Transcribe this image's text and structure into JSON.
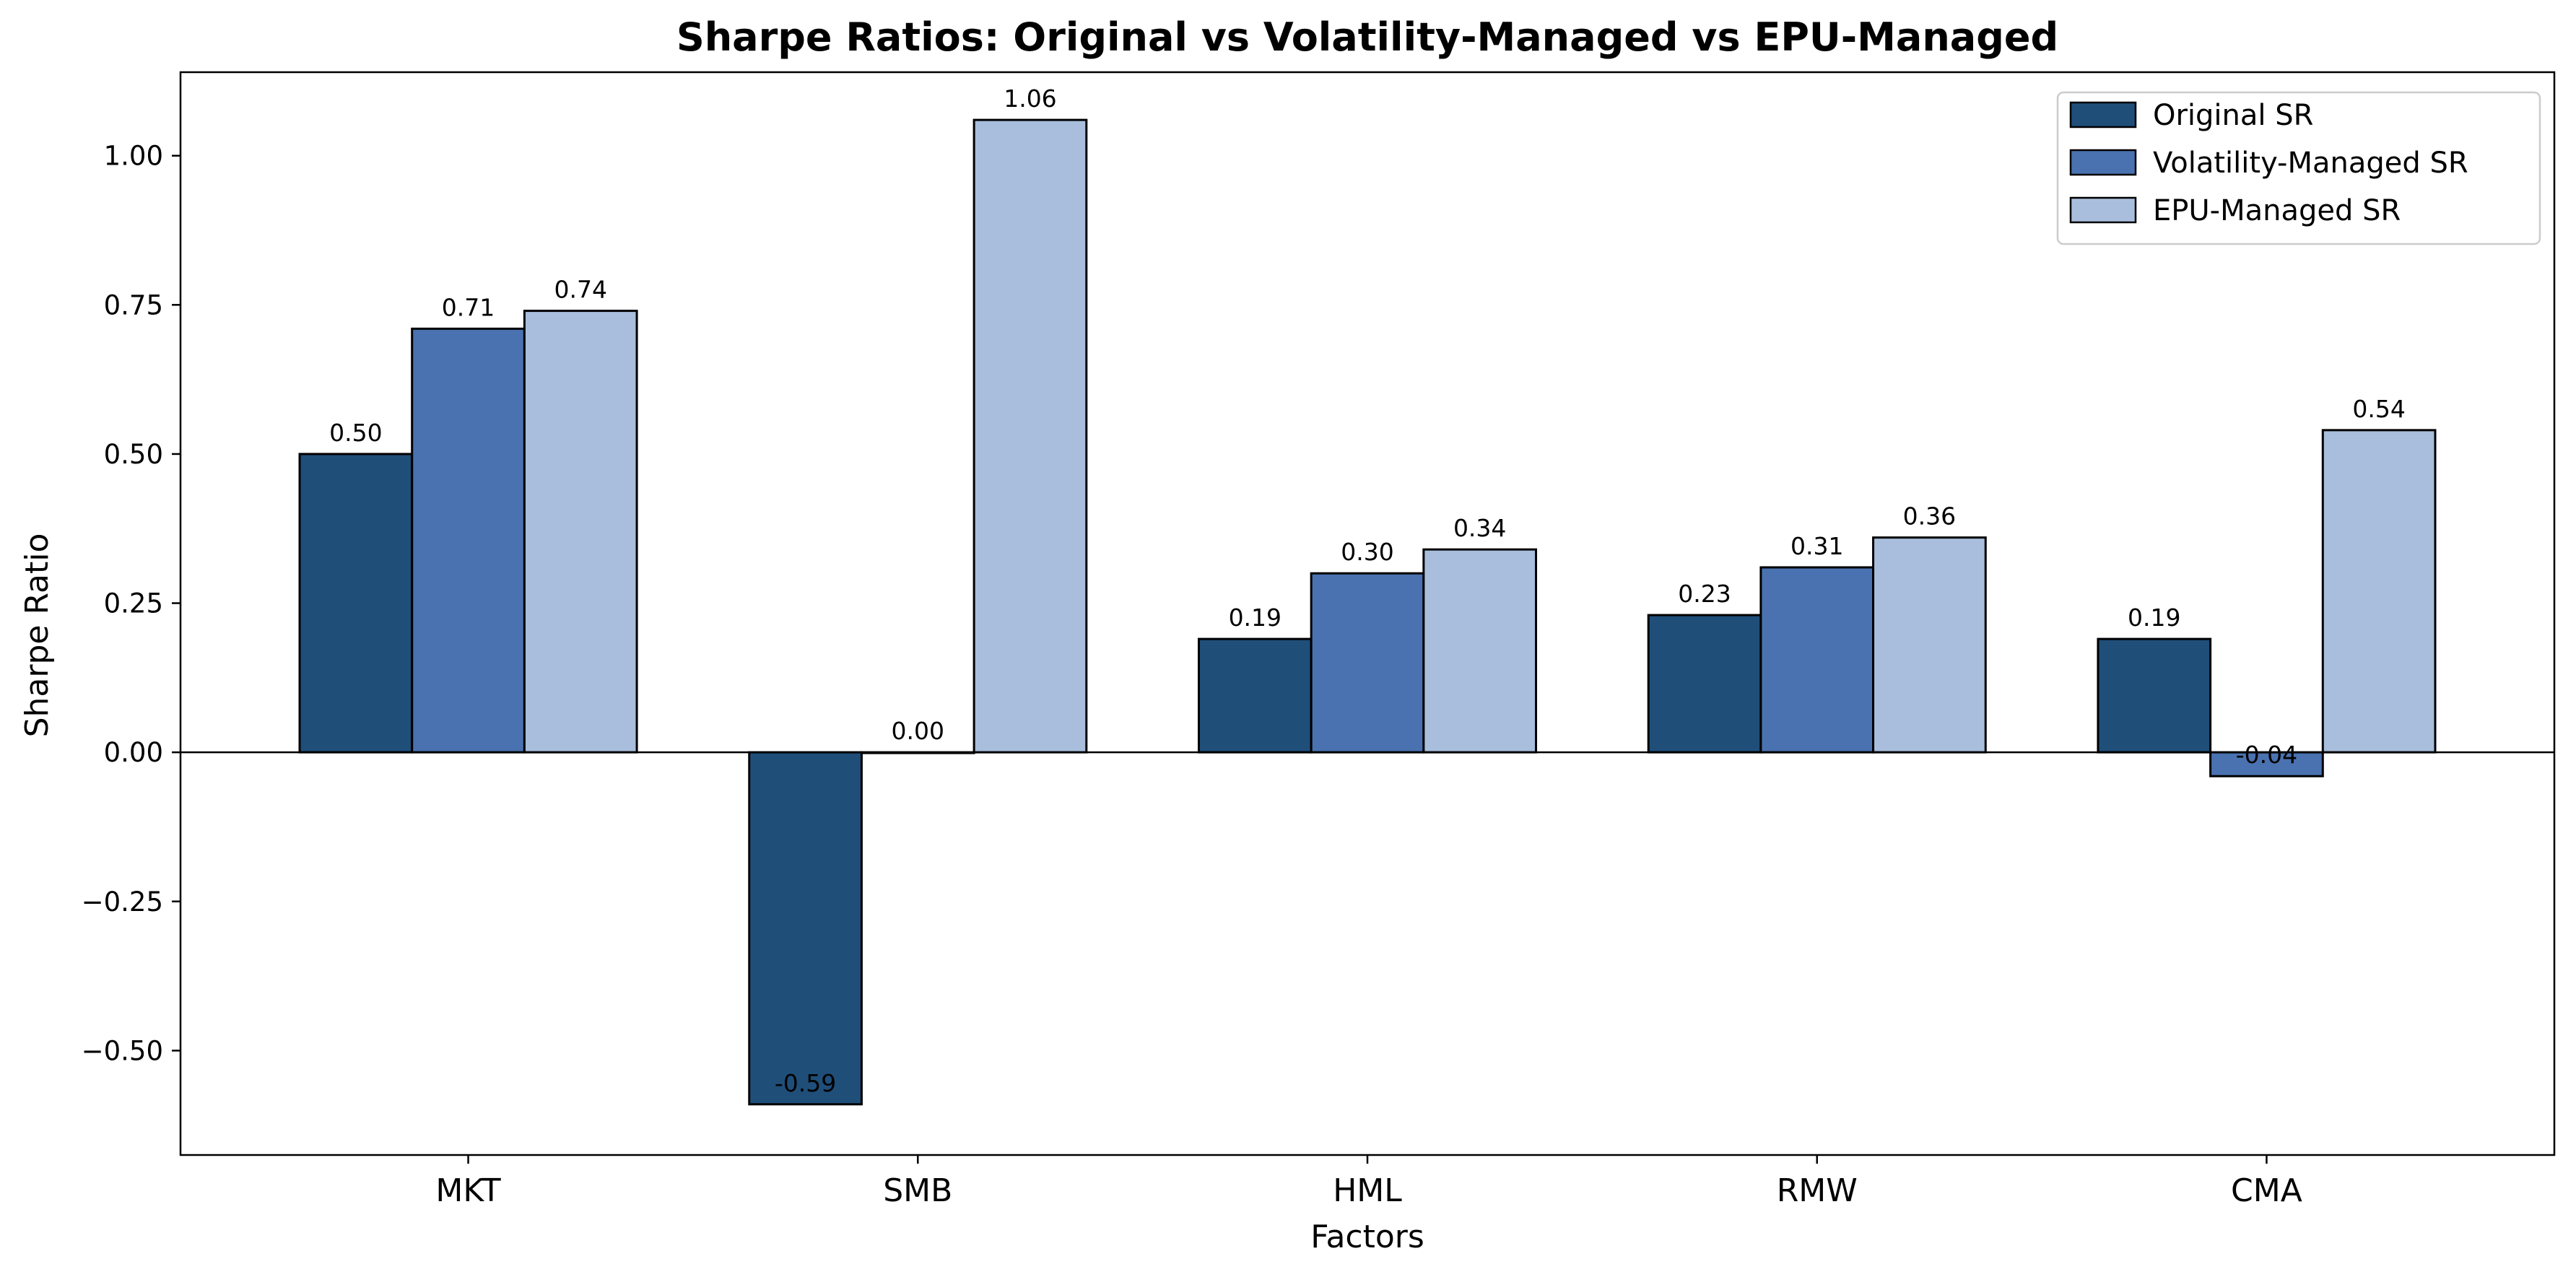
{
  "chart_data": {
    "type": "bar",
    "title": "Sharpe Ratios: Original vs Volatility-Managed vs EPU-Managed",
    "xlabel": "Factors",
    "ylabel": "Sharpe Ratio",
    "categories": [
      "MKT",
      "SMB",
      "HML",
      "RMW",
      "CMA"
    ],
    "series": [
      {
        "name": "Original SR",
        "color": "#1f4e79",
        "values": [
          0.5,
          -0.59,
          0.19,
          0.23,
          0.19
        ],
        "labels": [
          "0.50",
          "-0.59",
          "0.19",
          "0.23",
          "0.19"
        ]
      },
      {
        "name": "Volatility-Managed SR",
        "color": "#4a72b0",
        "values": [
          0.71,
          0.0,
          0.3,
          0.31,
          -0.04
        ],
        "labels": [
          "0.71",
          "0.00",
          "0.30",
          "0.31",
          "-0.04"
        ]
      },
      {
        "name": "EPU-Managed SR",
        "color": "#a8bedc",
        "values": [
          0.74,
          1.06,
          0.34,
          0.36,
          0.54
        ],
        "labels": [
          "0.74",
          "1.06",
          "0.34",
          "0.36",
          "0.54"
        ]
      }
    ],
    "ylim": [
      -0.675,
      1.14
    ],
    "yticks": [
      -0.5,
      -0.25,
      0.0,
      0.25,
      0.5,
      0.75,
      1.0
    ],
    "ytick_labels": [
      "−0.50",
      "−0.25",
      "0.00",
      "0.25",
      "0.50",
      "0.75",
      "1.00"
    ],
    "grid": false,
    "legend_position": "top-right",
    "zero_line": true
  }
}
